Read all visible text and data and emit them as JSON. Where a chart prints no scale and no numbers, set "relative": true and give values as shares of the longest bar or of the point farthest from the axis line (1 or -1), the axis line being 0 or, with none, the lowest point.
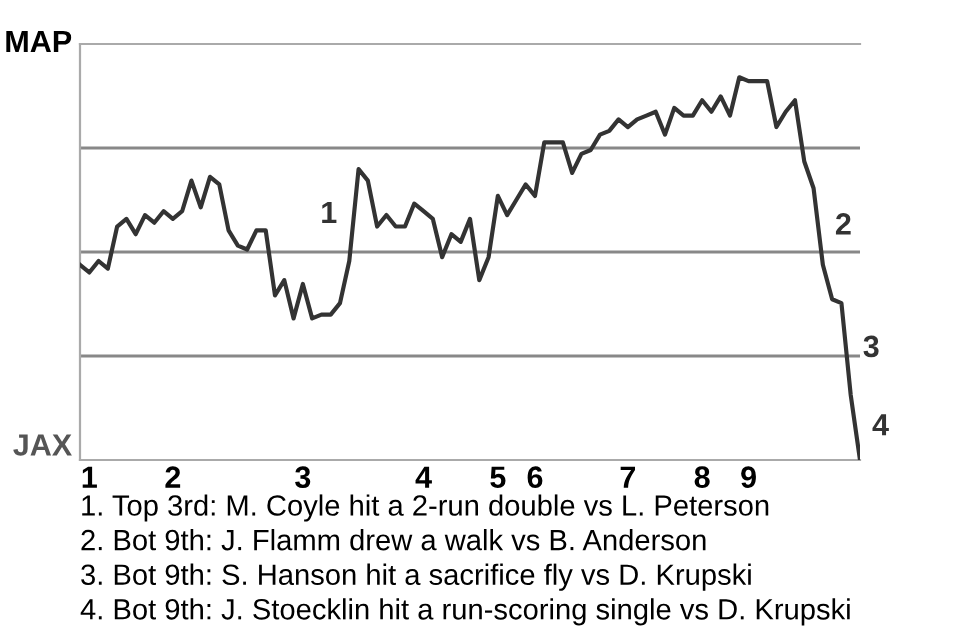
{
  "chart_data": {
    "type": "line",
    "relative": true,
    "categories": [
      null,
      "1",
      null,
      null,
      null,
      null,
      null,
      null,
      null,
      null,
      "2",
      null,
      null,
      null,
      null,
      null,
      null,
      null,
      null,
      null,
      null,
      null,
      null,
      null,
      "3",
      null,
      null,
      null,
      null,
      null,
      null,
      null,
      null,
      null,
      null,
      null,
      null,
      "4",
      null,
      null,
      null,
      null,
      null,
      null,
      null,
      "5",
      null,
      null,
      null,
      "6",
      null,
      null,
      null,
      null,
      null,
      null,
      null,
      null,
      null,
      "7",
      null,
      null,
      null,
      null,
      null,
      null,
      null,
      "8",
      null,
      null,
      null,
      null,
      "9",
      null,
      null,
      null,
      null,
      null,
      null,
      null,
      null,
      null,
      null,
      null,
      null
    ],
    "series": [
      {
        "color": "#333333",
        "values": [
          0.51,
          0.49,
          0.52,
          0.5,
          0.61,
          0.63,
          0.59,
          0.64,
          0.62,
          0.65,
          0.63,
          0.65,
          0.73,
          0.66,
          0.74,
          0.72,
          0.6,
          0.56,
          0.55,
          0.6,
          0.6,
          0.43,
          0.47,
          0.37,
          0.46,
          0.37,
          0.38,
          0.38,
          0.41,
          0.52,
          0.76,
          0.73,
          0.61,
          0.64,
          0.61,
          0.61,
          0.67,
          0.65,
          0.63,
          0.53,
          0.59,
          0.57,
          0.63,
          0.47,
          0.53,
          0.69,
          0.64,
          0.68,
          0.72,
          0.69,
          0.83,
          0.83,
          0.83,
          0.75,
          0.8,
          0.81,
          0.85,
          0.86,
          0.89,
          0.87,
          0.89,
          0.9,
          0.91,
          0.85,
          0.92,
          0.9,
          0.9,
          0.94,
          0.91,
          0.95,
          0.9,
          1,
          0.99,
          0.99,
          0.99,
          0.87,
          0.91,
          0.94,
          0.78,
          0.71,
          0.51,
          0.42,
          0.41,
          0.17,
          0
        ]
      }
    ],
    "grid": "y",
    "annotations": [
      "MAP",
      "JAX",
      "1",
      "2",
      "3",
      "4",
      "1. Top 3rd: M. Coyle hit a 2-run double vs L. Peterson",
      "2. Bot 9th: J. Flamm drew a walk vs B. Anderson",
      "3. Bot 9th: S. Hanson hit a sacrifice fly vs D. Krupski",
      "4. Bot 9th: J. Stoecklin hit a run-scoring single vs D. Krupski"
    ]
  }
}
